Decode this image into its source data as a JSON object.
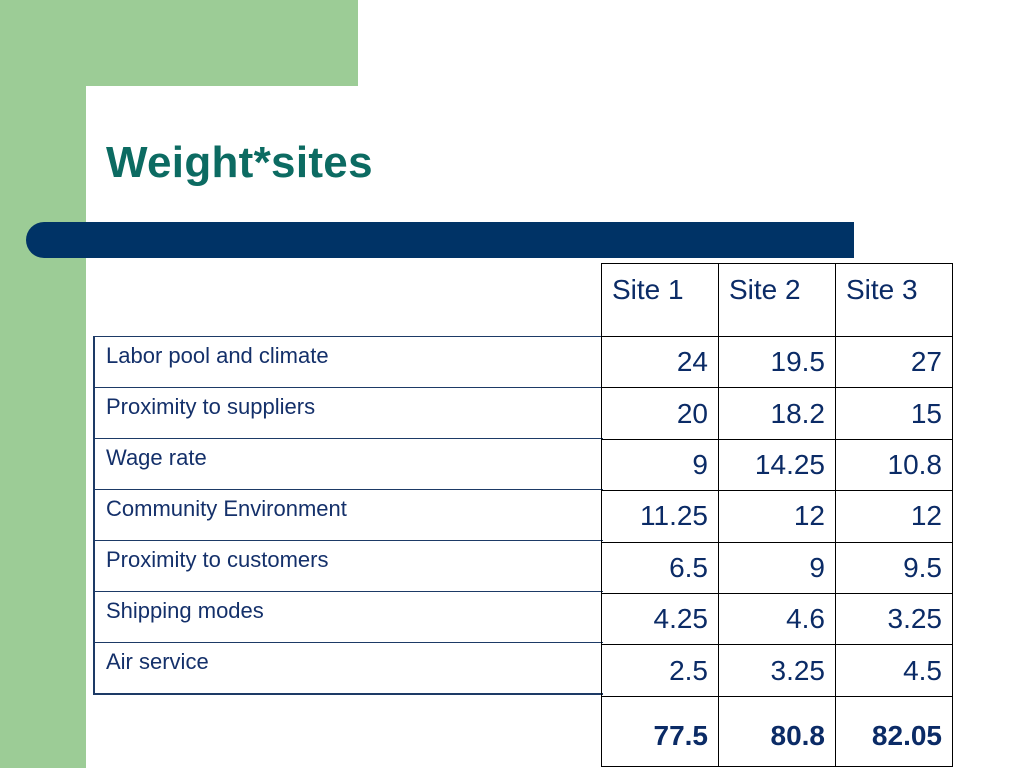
{
  "slide": {
    "title": "Weight*sites",
    "colors": {
      "accent_green": "#9ccc96",
      "title_teal": "#0c6b62",
      "navy": "#003366",
      "text_navy": "#14306a"
    }
  },
  "table": {
    "columns": [
      "Site 1",
      "Site 2",
      "Site 3"
    ],
    "rows": [
      {
        "label": "Labor pool and climate",
        "values": [
          "24",
          "19.5",
          "27"
        ]
      },
      {
        "label": "Proximity to suppliers",
        "values": [
          "20",
          "18.2",
          "15"
        ]
      },
      {
        "label": "Wage rate",
        "values": [
          "9",
          "14.25",
          "10.8"
        ]
      },
      {
        "label": "Community Environment",
        "values": [
          "11.25",
          "12",
          "12"
        ]
      },
      {
        "label": "Proximity to customers",
        "values": [
          "6.5",
          "9",
          "9.5"
        ]
      },
      {
        "label": "Shipping modes",
        "values": [
          "4.25",
          "4.6",
          "3.25"
        ]
      },
      {
        "label": "Air service",
        "values": [
          "2.5",
          "3.25",
          "4.5"
        ]
      }
    ],
    "totals": [
      "77.5",
      "80.8",
      "82.05"
    ]
  }
}
